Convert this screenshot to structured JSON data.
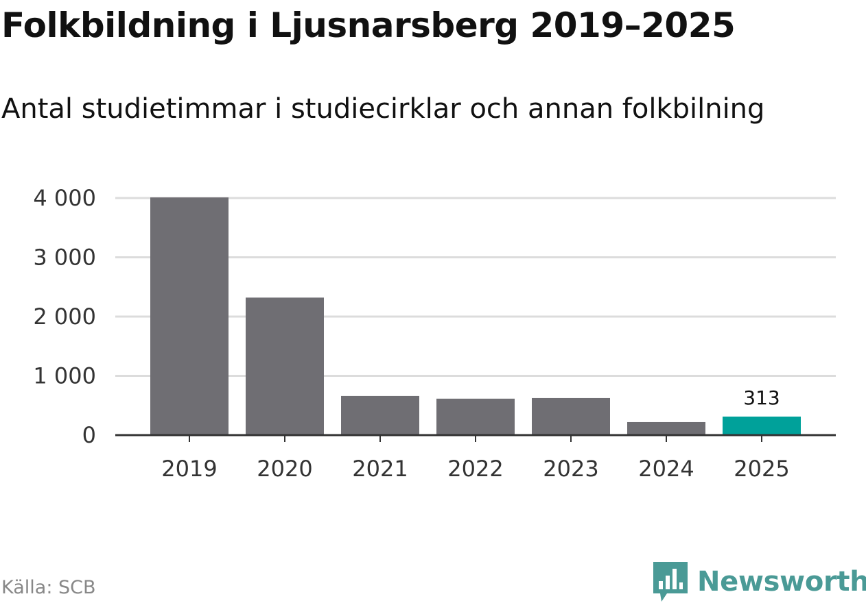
{
  "header": {
    "title": "Folkbildning i Ljusnarsberg 2019–2025",
    "subtitle": "Antal studietimmar i studiecirklar och annan folkbilning"
  },
  "footer": {
    "source": "Källa: SCB",
    "brand": "Newsworthy",
    "brand_icon": "newsworthy-logo-icon",
    "brand_color": "#4a9a96"
  },
  "chart_data": {
    "type": "bar",
    "title": "Folkbildning i Ljusnarsberg 2019–2025",
    "subtitle": "Antal studietimmar i studiecirklar och annan folkbilning",
    "xlabel": "",
    "ylabel": "",
    "categories": [
      "2019",
      "2020",
      "2021",
      "2022",
      "2023",
      "2024",
      "2025"
    ],
    "values": [
      4010,
      2320,
      660,
      615,
      625,
      220,
      313
    ],
    "ylim": [
      0,
      4000
    ],
    "yticks": [
      0,
      1000,
      2000,
      3000,
      4000
    ],
    "ytick_labels": [
      "0",
      "1 000",
      "2 000",
      "3 000",
      "4 000"
    ],
    "grid": true,
    "bar_color": "#6f6e73",
    "highlight_color": "#00a19a",
    "highlight_category": "2025",
    "data_labels": [
      {
        "category": "2025",
        "text": "313"
      }
    ]
  }
}
